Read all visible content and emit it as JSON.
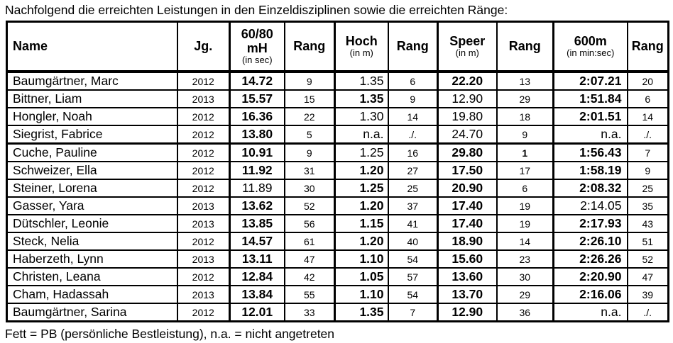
{
  "title": "Nachfolgend die erreichten Leistungen in den Einzeldisziplinen sowie die erreichten Ränge:",
  "footer": "Fett = PB (persönliche Bestleistung), n.a. = nicht angetreten",
  "colors": {
    "text": "#000000",
    "background": "#ffffff",
    "border": "#000000"
  },
  "table": {
    "columns": [
      {
        "key": "name",
        "line1": "Name",
        "line2": "",
        "sub": ""
      },
      {
        "key": "jg",
        "line1": "Jg.",
        "line2": "",
        "sub": ""
      },
      {
        "key": "hurdles",
        "line1": "60/80",
        "line2": "mH",
        "sub": "(in sec)"
      },
      {
        "key": "rang1",
        "line1": "Rang",
        "line2": "",
        "sub": ""
      },
      {
        "key": "hoch",
        "line1": "Hoch",
        "line2": "",
        "sub": "(in m)"
      },
      {
        "key": "rang2",
        "line1": "Rang",
        "line2": "",
        "sub": ""
      },
      {
        "key": "speer",
        "line1": "Speer",
        "line2": "",
        "sub": "(in m)"
      },
      {
        "key": "rang3",
        "line1": "Rang",
        "line2": "",
        "sub": ""
      },
      {
        "key": "m600",
        "line1": "600m",
        "line2": "",
        "sub": "(in min:sec)"
      },
      {
        "key": "rang4",
        "line1": "Rang",
        "line2": "",
        "sub": ""
      }
    ],
    "rows": [
      {
        "name": "Baumgärtner, Marc",
        "jg": "2012",
        "hurdles": {
          "v": "14.72",
          "bold": true
        },
        "rang1": {
          "v": "9",
          "bold": false
        },
        "hoch": {
          "v": "1.35",
          "bold": false
        },
        "rang2": {
          "v": "6",
          "bold": false
        },
        "speer": {
          "v": "22.20",
          "bold": true
        },
        "rang3": {
          "v": "13",
          "bold": false
        },
        "m600": {
          "v": "2:07.21",
          "bold": true
        },
        "rang4": {
          "v": "20",
          "bold": false
        },
        "group_start": false
      },
      {
        "name": "Bittner, Liam",
        "jg": "2013",
        "hurdles": {
          "v": "15.57",
          "bold": true
        },
        "rang1": {
          "v": "15",
          "bold": false
        },
        "hoch": {
          "v": "1.35",
          "bold": true
        },
        "rang2": {
          "v": "9",
          "bold": false
        },
        "speer": {
          "v": "12.90",
          "bold": false
        },
        "rang3": {
          "v": "29",
          "bold": false
        },
        "m600": {
          "v": "1:51.84",
          "bold": true
        },
        "rang4": {
          "v": "6",
          "bold": false
        },
        "group_start": false
      },
      {
        "name": "Hongler, Noah",
        "jg": "2012",
        "hurdles": {
          "v": "16.36",
          "bold": true
        },
        "rang1": {
          "v": "22",
          "bold": false
        },
        "hoch": {
          "v": "1.30",
          "bold": false
        },
        "rang2": {
          "v": "14",
          "bold": false
        },
        "speer": {
          "v": "19.80",
          "bold": false
        },
        "rang3": {
          "v": "18",
          "bold": false
        },
        "m600": {
          "v": "2:01.51",
          "bold": true
        },
        "rang4": {
          "v": "14",
          "bold": false
        },
        "group_start": false
      },
      {
        "name": "Siegrist, Fabrice",
        "jg": "2012",
        "hurdles": {
          "v": "13.80",
          "bold": true
        },
        "rang1": {
          "v": "5",
          "bold": false
        },
        "hoch": {
          "v": "n.a.",
          "bold": false
        },
        "rang2": {
          "v": "./.",
          "bold": false
        },
        "speer": {
          "v": "24.70",
          "bold": false
        },
        "rang3": {
          "v": "9",
          "bold": false
        },
        "m600": {
          "v": "n.a.",
          "bold": false
        },
        "rang4": {
          "v": "./.",
          "bold": false
        },
        "group_start": false
      },
      {
        "name": "Cuche, Pauline",
        "jg": "2012",
        "hurdles": {
          "v": "10.91",
          "bold": true
        },
        "rang1": {
          "v": "9",
          "bold": false
        },
        "hoch": {
          "v": "1.25",
          "bold": false
        },
        "rang2": {
          "v": "16",
          "bold": false
        },
        "speer": {
          "v": "29.80",
          "bold": true
        },
        "rang3": {
          "v": "1",
          "bold": true
        },
        "m600": {
          "v": "1:56.43",
          "bold": true
        },
        "rang4": {
          "v": "7",
          "bold": false
        },
        "group_start": true
      },
      {
        "name": "Schweizer, Ella",
        "jg": "2012",
        "hurdles": {
          "v": "11.92",
          "bold": true
        },
        "rang1": {
          "v": "31",
          "bold": false
        },
        "hoch": {
          "v": "1.20",
          "bold": true
        },
        "rang2": {
          "v": "27",
          "bold": false
        },
        "speer": {
          "v": "17.50",
          "bold": true
        },
        "rang3": {
          "v": "17",
          "bold": false
        },
        "m600": {
          "v": "1:58.19",
          "bold": true
        },
        "rang4": {
          "v": "9",
          "bold": false
        },
        "group_start": false
      },
      {
        "name": "Steiner, Lorena",
        "jg": "2012",
        "hurdles": {
          "v": "11.89",
          "bold": false
        },
        "rang1": {
          "v": "30",
          "bold": false
        },
        "hoch": {
          "v": "1.25",
          "bold": true
        },
        "rang2": {
          "v": "25",
          "bold": false
        },
        "speer": {
          "v": "20.90",
          "bold": true
        },
        "rang3": {
          "v": "6",
          "bold": false
        },
        "m600": {
          "v": "2:08.32",
          "bold": true
        },
        "rang4": {
          "v": "25",
          "bold": false
        },
        "group_start": false
      },
      {
        "name": "Gasser, Yara",
        "jg": "2013",
        "hurdles": {
          "v": "13.62",
          "bold": true
        },
        "rang1": {
          "v": "52",
          "bold": false
        },
        "hoch": {
          "v": "1.20",
          "bold": true
        },
        "rang2": {
          "v": "37",
          "bold": false
        },
        "speer": {
          "v": "17.40",
          "bold": true
        },
        "rang3": {
          "v": "19",
          "bold": false
        },
        "m600": {
          "v": "2:14.05",
          "bold": false
        },
        "rang4": {
          "v": "35",
          "bold": false
        },
        "group_start": false
      },
      {
        "name": "Dütschler, Leonie",
        "jg": "2013",
        "hurdles": {
          "v": "13.85",
          "bold": true
        },
        "rang1": {
          "v": "56",
          "bold": false
        },
        "hoch": {
          "v": "1.15",
          "bold": true
        },
        "rang2": {
          "v": "41",
          "bold": false
        },
        "speer": {
          "v": "17.40",
          "bold": true
        },
        "rang3": {
          "v": "19",
          "bold": false
        },
        "m600": {
          "v": "2:17.93",
          "bold": true
        },
        "rang4": {
          "v": "43",
          "bold": false
        },
        "group_start": false
      },
      {
        "name": "Steck, Nelia",
        "jg": "2012",
        "hurdles": {
          "v": "14.57",
          "bold": true
        },
        "rang1": {
          "v": "61",
          "bold": false
        },
        "hoch": {
          "v": "1.20",
          "bold": true
        },
        "rang2": {
          "v": "40",
          "bold": false
        },
        "speer": {
          "v": "18.90",
          "bold": true
        },
        "rang3": {
          "v": "14",
          "bold": false
        },
        "m600": {
          "v": "2:26.10",
          "bold": true
        },
        "rang4": {
          "v": "51",
          "bold": false
        },
        "group_start": false
      },
      {
        "name": "Haberzeth, Lynn",
        "jg": "2013",
        "hurdles": {
          "v": "13.11",
          "bold": true
        },
        "rang1": {
          "v": "47",
          "bold": false
        },
        "hoch": {
          "v": "1.10",
          "bold": true
        },
        "rang2": {
          "v": "54",
          "bold": false
        },
        "speer": {
          "v": "15.60",
          "bold": true
        },
        "rang3": {
          "v": "23",
          "bold": false
        },
        "m600": {
          "v": "2:26.26",
          "bold": true
        },
        "rang4": {
          "v": "52",
          "bold": false
        },
        "group_start": false
      },
      {
        "name": "Christen, Leana",
        "jg": "2012",
        "hurdles": {
          "v": "12.84",
          "bold": true
        },
        "rang1": {
          "v": "42",
          "bold": false
        },
        "hoch": {
          "v": "1.05",
          "bold": true
        },
        "rang2": {
          "v": "57",
          "bold": false
        },
        "speer": {
          "v": "13.60",
          "bold": true
        },
        "rang3": {
          "v": "30",
          "bold": false
        },
        "m600": {
          "v": "2:20.90",
          "bold": true
        },
        "rang4": {
          "v": "47",
          "bold": false
        },
        "group_start": false
      },
      {
        "name": "Cham, Hadassah",
        "jg": "2013",
        "hurdles": {
          "v": "13.84",
          "bold": true
        },
        "rang1": {
          "v": "55",
          "bold": false
        },
        "hoch": {
          "v": "1.10",
          "bold": true
        },
        "rang2": {
          "v": "54",
          "bold": false
        },
        "speer": {
          "v": "13.70",
          "bold": true
        },
        "rang3": {
          "v": "29",
          "bold": false
        },
        "m600": {
          "v": "2:16.06",
          "bold": true
        },
        "rang4": {
          "v": "39",
          "bold": false
        },
        "group_start": false
      },
      {
        "name": "Baumgärtner, Sarina",
        "jg": "2012",
        "hurdles": {
          "v": "12.01",
          "bold": true
        },
        "rang1": {
          "v": "33",
          "bold": false
        },
        "hoch": {
          "v": "1.35",
          "bold": true
        },
        "rang2": {
          "v": "7",
          "bold": false
        },
        "speer": {
          "v": "12.90",
          "bold": true
        },
        "rang3": {
          "v": "36",
          "bold": false
        },
        "m600": {
          "v": "n.a.",
          "bold": false
        },
        "rang4": {
          "v": "./.",
          "bold": false
        },
        "group_start": false
      }
    ]
  }
}
